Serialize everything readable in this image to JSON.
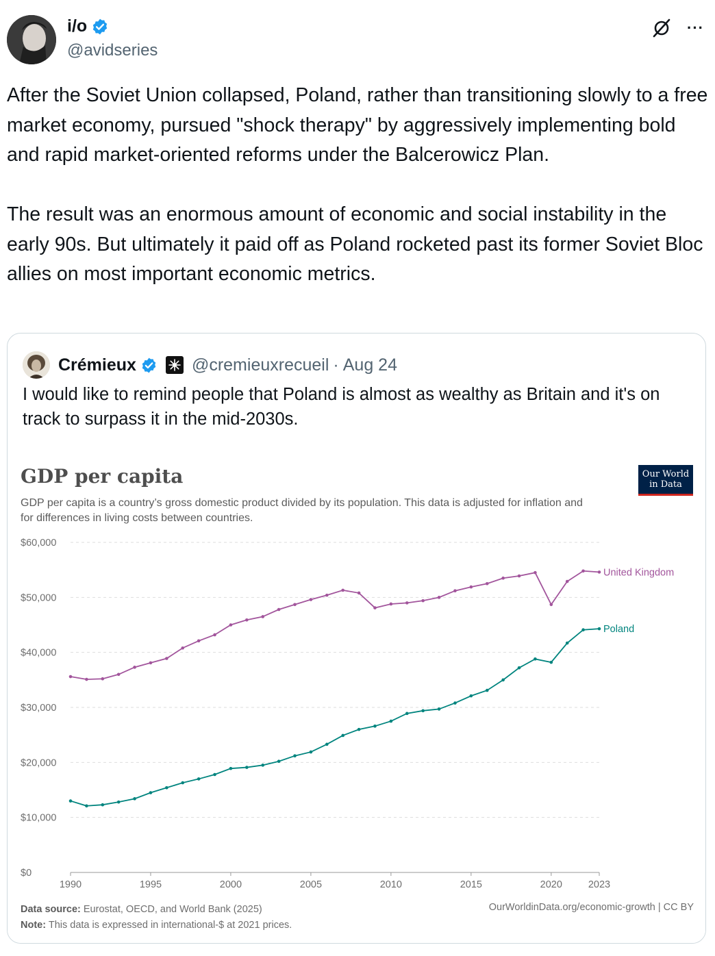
{
  "tweet": {
    "author_name": "i/o",
    "author_handle": "@avidseries",
    "more_label": "···",
    "text": "After the Soviet Union collapsed, Poland, rather than transitioning slowly to a free market economy, pursued \"shock therapy\" by aggressively implementing bold and rapid market-oriented reforms under the Balcerowicz Plan.\n\nThe result was an enormous amount of economic and social instability in the early 90s. But ultimately it paid off as Poland rocketed past its former Soviet Bloc allies on most important economic metrics."
  },
  "quoted": {
    "author_name": "Crémieux",
    "author_handle": "@cremieuxrecueil",
    "separator": "·",
    "date": "Aug 24",
    "text": "I would like to remind people that Poland is almost as wealthy as Britain and it's on track to surpass it in the mid-2030s."
  },
  "colors": {
    "verified": "#1d9bf0",
    "uk_series": "#a2559c",
    "poland_series": "#00847e",
    "grid": "#dddddd"
  },
  "chart_data": {
    "type": "line",
    "title": "GDP per capita",
    "subtitle": "GDP per capita is a country’s gross domestic product divided by its population. This data is adjusted for inflation and for differences in living costs between countries.",
    "logo_text": [
      "Our World",
      "in Data"
    ],
    "x": [
      1990,
      1991,
      1992,
      1993,
      1994,
      1995,
      1996,
      1997,
      1998,
      1999,
      2000,
      2001,
      2002,
      2003,
      2004,
      2005,
      2006,
      2007,
      2008,
      2009,
      2010,
      2011,
      2012,
      2013,
      2014,
      2015,
      2016,
      2017,
      2018,
      2019,
      2020,
      2021,
      2022,
      2023
    ],
    "series": [
      {
        "name": "United Kingdom",
        "values": [
          35600,
          35100,
          35200,
          36000,
          37300,
          38100,
          38900,
          40800,
          42100,
          43200,
          45000,
          45900,
          46500,
          47800,
          48700,
          49600,
          50400,
          51300,
          50800,
          48100,
          48800,
          49000,
          49400,
          50000,
          51200,
          51900,
          52500,
          53500,
          53900,
          54500,
          48700,
          52900,
          54800,
          54600
        ]
      },
      {
        "name": "Poland",
        "values": [
          13000,
          12100,
          12300,
          12800,
          13400,
          14500,
          15400,
          16300,
          17000,
          17800,
          18900,
          19100,
          19500,
          20200,
          21200,
          21900,
          23300,
          24900,
          26000,
          26600,
          27500,
          28900,
          29400,
          29700,
          30800,
          32100,
          33100,
          35000,
          37200,
          38800,
          38200,
          41700,
          44100,
          44300
        ]
      }
    ],
    "x_ticks": [
      1990,
      1995,
      2000,
      2005,
      2010,
      2015,
      2020,
      2023
    ],
    "y_ticks": [
      0,
      10000,
      20000,
      30000,
      40000,
      50000,
      60000
    ],
    "y_tick_labels": [
      "$0",
      "$10,000",
      "$20,000",
      "$30,000",
      "$40,000",
      "$50,000",
      "$60,000"
    ],
    "ylim": [
      0,
      60000
    ],
    "xlim": [
      1990,
      2023
    ],
    "grid": "horizontal dashed",
    "legend": "inline labels at line ends",
    "footer": {
      "source_label": "Data source:",
      "source_text": "Eurostat, OECD, and World Bank (2025)",
      "note_label": "Note:",
      "note_text": "This data is expressed in international-$ at 2021 prices.",
      "credit": "OurWorldinData.org/economic-growth | CC BY"
    }
  }
}
